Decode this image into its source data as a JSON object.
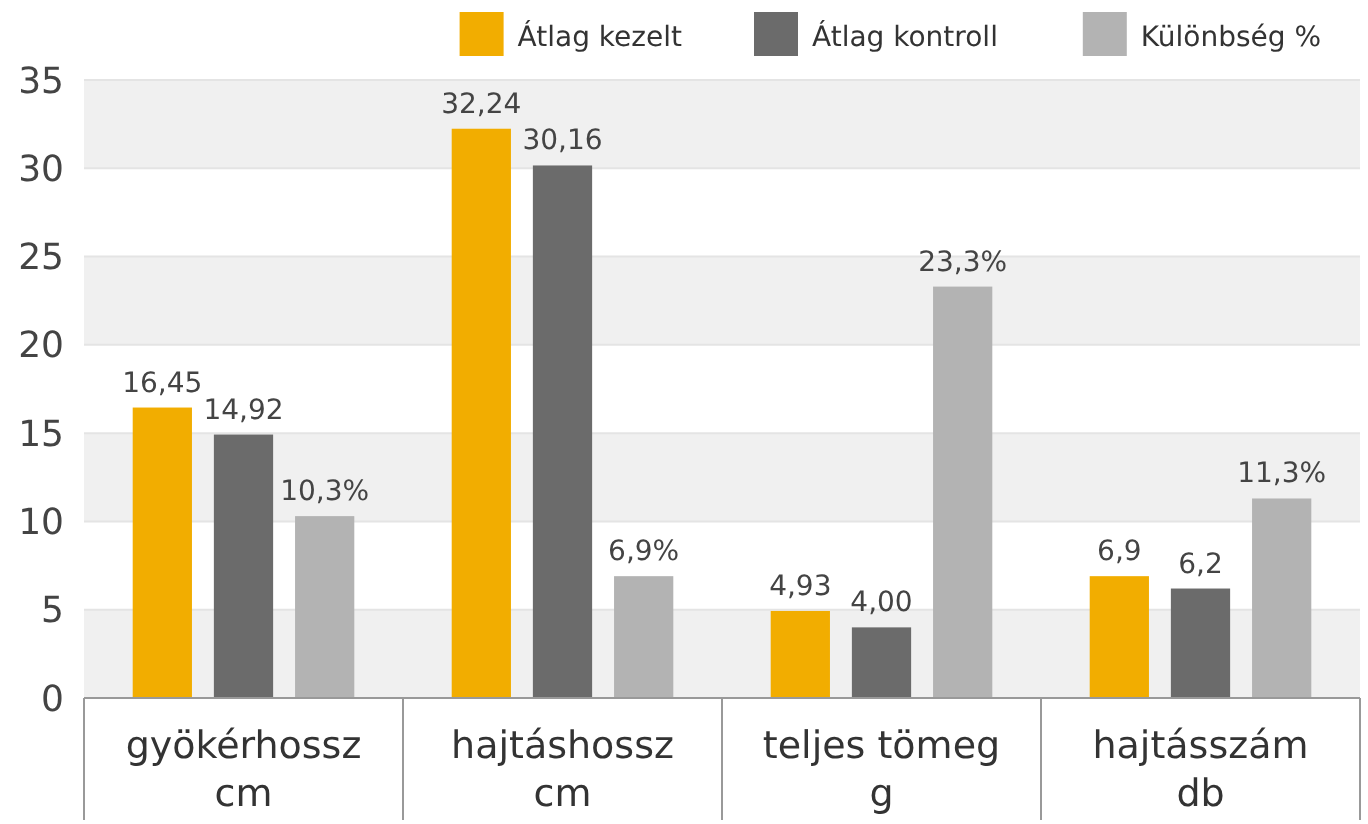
{
  "chart_data": {
    "type": "bar",
    "categories": [
      "gyökérhossz\ncm",
      "hajtáshossz\ncm",
      "teljes tömeg\ng",
      "hajtásszám\ndb"
    ],
    "series": [
      {
        "name": "Átlag kezelt",
        "color": "#f2ad00",
        "values": [
          16.45,
          32.24,
          4.93,
          6.9
        ],
        "value_labels": [
          "16,45",
          "32,24",
          "4,93",
          "6,9"
        ]
      },
      {
        "name": "Átlag kontroll",
        "color": "#6b6b6b",
        "values": [
          14.92,
          30.16,
          4.0,
          6.2
        ],
        "value_labels": [
          "14,92",
          "30,16",
          "4,00",
          "6,2"
        ]
      },
      {
        "name": "Különbség %",
        "color": "#b3b3b3",
        "values": [
          10.3,
          6.9,
          23.3,
          11.3
        ],
        "value_labels": [
          "10,3%",
          "6,9%",
          "23,3%",
          "11,3%"
        ]
      }
    ],
    "ylim": [
      0,
      35
    ],
    "yticks": [
      0,
      5,
      10,
      15,
      20,
      25,
      30,
      35
    ],
    "grid": true,
    "legend": "top right"
  }
}
